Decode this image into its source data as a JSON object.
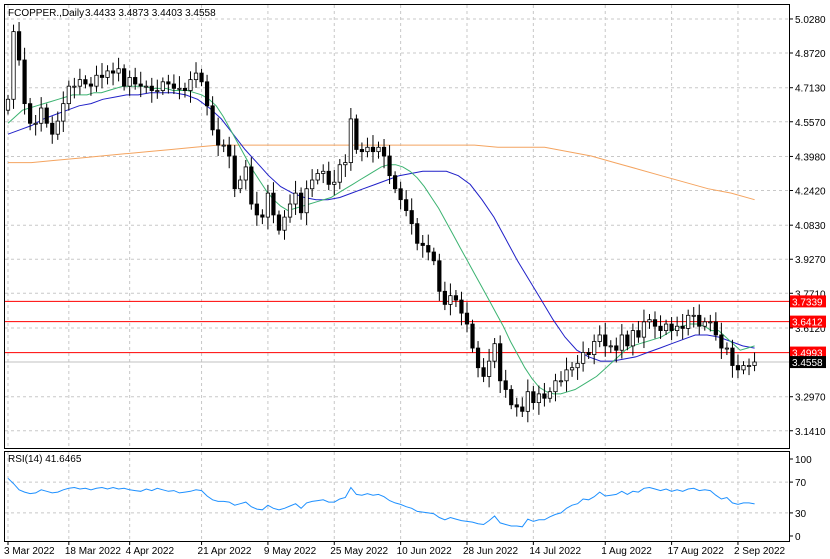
{
  "header": {
    "symbol": "FCOPPER.,Daily",
    "ohlc": "3.4433 3.4873 3.4403 3.4558"
  },
  "rsi_label": "RSI(14) 41.6465",
  "chart_data": {
    "type": "candlestick",
    "symbol": "FCOPPER.,Daily",
    "price_ylim": [
      3.062,
      5.092
    ],
    "price_ticks": [
      "5.0280",
      "4.8720",
      "4.7130",
      "4.5570",
      "4.3980",
      "4.2420",
      "4.0830",
      "3.9270",
      "3.7710",
      "3.6120",
      "3.4560",
      "3.2970",
      "3.1410"
    ],
    "x_labels": [
      {
        "label": "3 Mar 2022",
        "index": 0
      },
      {
        "label": "18 Mar 2022",
        "index": 11
      },
      {
        "label": "4 Apr 2022",
        "index": 22
      },
      {
        "label": "21 Apr 2022",
        "index": 35
      },
      {
        "label": "9 May 2022",
        "index": 47
      },
      {
        "label": "25 May 2022",
        "index": 59
      },
      {
        "label": "10 Jun 2022",
        "index": 71
      },
      {
        "label": "28 Jun 2022",
        "index": 83
      },
      {
        "label": "14 Jul 2022",
        "index": 95
      },
      {
        "label": "1 Aug 2022",
        "index": 108
      },
      {
        "label": "17 Aug 2022",
        "index": 120
      },
      {
        "label": "2 Sep 2022",
        "index": 132
      }
    ],
    "closes": [
      4.66,
      4.97,
      4.84,
      4.64,
      4.55,
      4.55,
      4.62,
      4.55,
      4.5,
      4.56,
      4.64,
      4.72,
      4.72,
      4.75,
      4.73,
      4.72,
      4.77,
      4.76,
      4.79,
      4.78,
      4.8,
      4.72,
      4.76,
      4.73,
      4.72,
      4.72,
      4.7,
      4.7,
      4.74,
      4.73,
      4.71,
      4.71,
      4.7,
      4.75,
      4.78,
      4.74,
      4.63,
      4.52,
      4.45,
      4.45,
      4.4,
      4.25,
      4.29,
      4.35,
      4.18,
      4.13,
      4.12,
      4.23,
      4.13,
      4.06,
      4.12,
      4.18,
      4.23,
      4.14,
      4.25,
      4.29,
      4.32,
      4.33,
      4.27,
      4.28,
      4.36,
      4.37,
      4.57,
      4.43,
      4.42,
      4.44,
      4.42,
      4.44,
      4.4,
      4.31,
      4.25,
      4.2,
      4.15,
      4.09,
      4.0,
      3.99,
      3.96,
      3.92,
      3.78,
      3.72,
      3.76,
      3.74,
      3.68,
      3.63,
      3.52,
      3.43,
      3.39,
      3.46,
      3.54,
      3.37,
      3.33,
      3.26,
      3.25,
      3.23,
      3.32,
      3.27,
      3.31,
      3.29,
      3.32,
      3.37,
      3.37,
      3.42,
      3.43,
      3.45,
      3.5,
      3.49,
      3.55,
      3.58,
      3.53,
      3.53,
      3.51,
      3.58,
      3.53,
      3.6,
      3.57,
      3.64,
      3.65,
      3.62,
      3.6,
      3.63,
      3.6,
      3.62,
      3.61,
      3.67,
      3.67,
      3.62,
      3.64,
      3.64,
      3.58,
      3.52,
      3.52,
      3.44,
      3.42,
      3.44,
      3.44,
      3.456
    ],
    "ma_short": {
      "name": "MA short (green)",
      "values": [
        4.55,
        4.58,
        4.61,
        4.62,
        4.63,
        4.64,
        4.65,
        4.66,
        4.67,
        4.68,
        4.68,
        4.68,
        4.69,
        4.69,
        4.7,
        4.71,
        4.72,
        4.72,
        4.72,
        4.72,
        4.71,
        4.71,
        4.71,
        4.7,
        4.7,
        4.7,
        4.69,
        4.68,
        4.66,
        4.63,
        4.58,
        4.52,
        4.46,
        4.4,
        4.34,
        4.29,
        4.24,
        4.2,
        4.17,
        4.15,
        4.16,
        4.17,
        4.18,
        4.19,
        4.2,
        4.21,
        4.23,
        4.25,
        4.27,
        4.29,
        4.31,
        4.33,
        4.35,
        4.36,
        4.36,
        4.35,
        4.33,
        4.3,
        4.26,
        4.21,
        4.16,
        4.1,
        4.04,
        3.98,
        3.92,
        3.86,
        3.8,
        3.74,
        3.68,
        3.62,
        3.55,
        3.49,
        3.43,
        3.38,
        3.34,
        3.32,
        3.31,
        3.31,
        3.32,
        3.33,
        3.35,
        3.37,
        3.39,
        3.42,
        3.45,
        3.48,
        3.51,
        3.53,
        3.54,
        3.55,
        3.56,
        3.57,
        3.59,
        3.61,
        3.62,
        3.63,
        3.63,
        3.62,
        3.6,
        3.6,
        3.57,
        3.54,
        3.51,
        3.52,
        3.53
      ]
    },
    "ma_mid": {
      "name": "MA mid (blue)",
      "values": [
        4.5,
        4.52,
        4.54,
        4.57,
        4.59,
        4.61,
        4.63,
        4.64,
        4.66,
        4.67,
        4.68,
        4.68,
        4.69,
        4.69,
        4.69,
        4.68,
        4.66,
        4.62,
        4.57,
        4.5,
        4.43,
        4.37,
        4.31,
        4.26,
        4.23,
        4.21,
        4.2,
        4.2,
        4.21,
        4.23,
        4.25,
        4.27,
        4.29,
        4.31,
        4.32,
        4.33,
        4.33,
        4.33,
        4.31,
        4.27,
        4.2,
        4.12,
        4.02,
        3.92,
        3.83,
        3.74,
        3.65,
        3.57,
        3.51,
        3.48,
        3.46,
        3.46,
        3.47,
        3.48,
        3.5,
        3.52,
        3.54,
        3.56,
        3.58,
        3.58,
        3.57,
        3.55,
        3.53,
        3.52
      ]
    },
    "ma_long": {
      "name": "MA long (orange)",
      "values": [
        4.37,
        4.37,
        4.38,
        4.39,
        4.4,
        4.41,
        4.42,
        4.43,
        4.44,
        4.45,
        4.45,
        4.45,
        4.45,
        4.45,
        4.45,
        4.45,
        4.45,
        4.45,
        4.45,
        4.45,
        4.45,
        4.44,
        4.44,
        4.44,
        4.42,
        4.4,
        4.37,
        4.34,
        4.31,
        4.28,
        4.25,
        4.23,
        4.2
      ]
    },
    "horizontal_levels": [
      {
        "value": 3.7339,
        "label": "3.7339",
        "color": "#ff0000"
      },
      {
        "value": 3.6412,
        "label": "3.6412",
        "color": "#ff0000"
      },
      {
        "value": 3.4993,
        "label": "3.4993",
        "color": "#ff0000"
      }
    ],
    "current_price": {
      "value": 3.4558,
      "label": "3.4558",
      "color": "#000000"
    },
    "rsi": {
      "label": "RSI(14) 41.6465",
      "ylim": [
        0,
        100
      ],
      "ticks": [
        "100",
        "70",
        "30",
        "0"
      ],
      "values": [
        75,
        68,
        60,
        57,
        55,
        56,
        60,
        58,
        56,
        57,
        60,
        62,
        63,
        61,
        62,
        60,
        62,
        63,
        61,
        63,
        61,
        62,
        60,
        59,
        58,
        61,
        59,
        62,
        60,
        58,
        59,
        56,
        57,
        58,
        60,
        59,
        52,
        47,
        45,
        45,
        44,
        40,
        42,
        44,
        38,
        35,
        34,
        40,
        36,
        34,
        36,
        39,
        42,
        36,
        43,
        45,
        46,
        47,
        44,
        44,
        48,
        50,
        63,
        54,
        53,
        55,
        53,
        54,
        51,
        46,
        43,
        41,
        38,
        36,
        32,
        31,
        30,
        29,
        24,
        21,
        24,
        22,
        20,
        19,
        18,
        16,
        15,
        20,
        26,
        17,
        15,
        13,
        13,
        12,
        22,
        19,
        21,
        21,
        25,
        28,
        30,
        36,
        40,
        42,
        48,
        47,
        51,
        57,
        52,
        53,
        54,
        58,
        54,
        58,
        57,
        62,
        63,
        61,
        59,
        61,
        58,
        60,
        58,
        61,
        62,
        59,
        60,
        59,
        53,
        48,
        50,
        43,
        41,
        43,
        43,
        41.65
      ]
    }
  }
}
